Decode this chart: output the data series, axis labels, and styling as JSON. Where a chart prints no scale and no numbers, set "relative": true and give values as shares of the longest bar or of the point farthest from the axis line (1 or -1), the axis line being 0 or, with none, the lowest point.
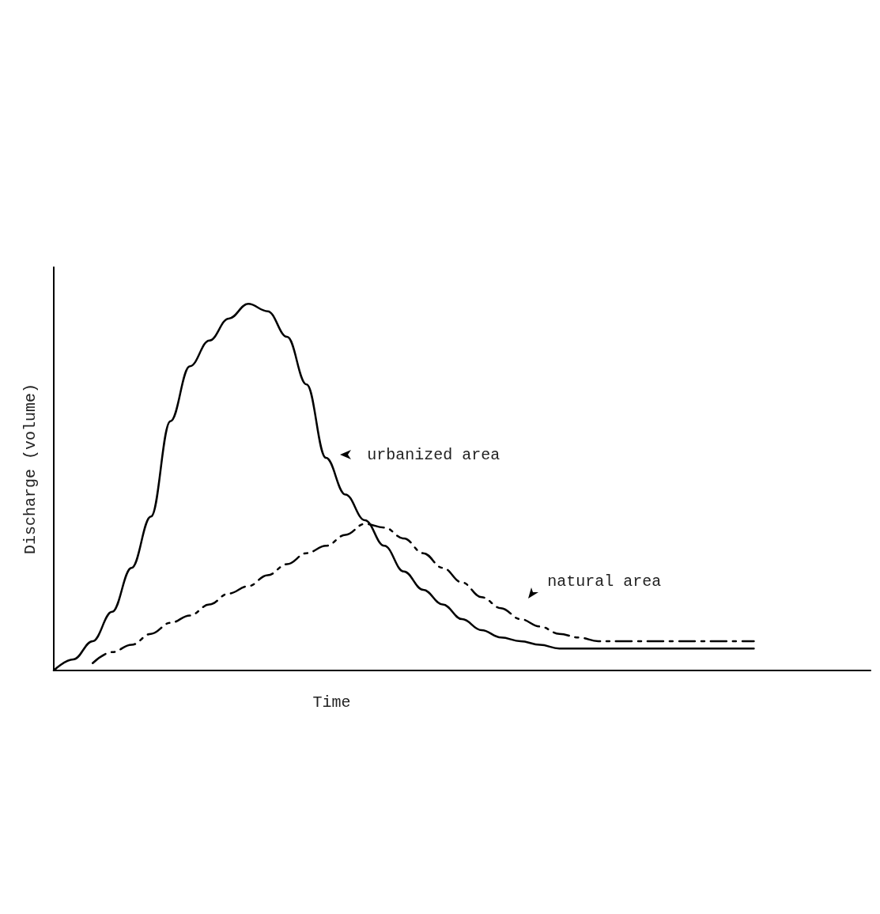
{
  "chart_data": {
    "type": "line",
    "xlabel": "Time",
    "ylabel": "Discharge (volume)",
    "relative": true,
    "categories": [
      null,
      null,
      null,
      null,
      null,
      null,
      null,
      null,
      null,
      null,
      null,
      null,
      null,
      null,
      null,
      null,
      null,
      null,
      null,
      null,
      null,
      null,
      null,
      null,
      null,
      null,
      null,
      null,
      null,
      null,
      null,
      null,
      null,
      null,
      null,
      null,
      null,
      null,
      null,
      null,
      null,
      null,
      null
    ],
    "series": [
      {
        "name": "urbanized area",
        "color": "#000000",
        "line_style": "solid",
        "values": [
          0,
          0.03,
          0.08,
          0.16,
          0.28,
          0.42,
          0.68,
          0.83,
          0.9,
          0.96,
          1,
          0.98,
          0.91,
          0.78,
          0.58,
          0.48,
          0.41,
          0.34,
          0.27,
          0.22,
          0.18,
          0.14,
          0.11,
          0.09,
          0.08,
          0.07,
          0.06,
          0.06,
          0.06,
          0.06,
          0.06,
          0.06,
          0.06,
          0.06,
          0.06,
          0.06,
          0.06,
          null,
          null,
          null,
          null,
          null,
          null
        ]
      },
      {
        "name": "natural area",
        "color": "#000000",
        "line_style": "dashed",
        "values": [
          null,
          null,
          0.02,
          0.05,
          0.07,
          0.1,
          0.13,
          0.15,
          0.18,
          0.21,
          0.23,
          0.26,
          0.29,
          0.32,
          0.34,
          0.37,
          0.4,
          0.39,
          0.36,
          0.32,
          0.28,
          0.24,
          0.2,
          0.17,
          0.14,
          0.12,
          0.1,
          0.09,
          0.08,
          0.08,
          0.08,
          0.08,
          0.08,
          0.08,
          0.08,
          0.08,
          0.08,
          null,
          null,
          null,
          null,
          null,
          null
        ]
      }
    ]
  }
}
